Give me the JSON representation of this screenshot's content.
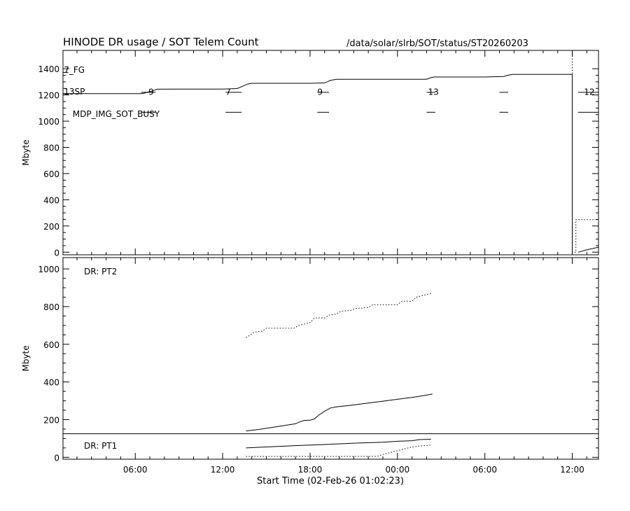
{
  "header": {
    "title": "HINODE DR usage / SOT Telem Count",
    "path": "/data/solar/slrb/SOT/status/ST20260203"
  },
  "x_axis": {
    "label": "Start Time (02-Feb-26 01:02:23)",
    "range_hours": [
      1.04,
      37.8
    ],
    "ticks": [
      {
        "hours": 6,
        "label": "06:00"
      },
      {
        "hours": 12,
        "label": "12:00"
      },
      {
        "hours": 18,
        "label": "18:00"
      },
      {
        "hours": 24,
        "label": "00:00"
      },
      {
        "hours": 30,
        "label": "06:00"
      },
      {
        "hours": 36,
        "label": "12:00"
      }
    ]
  },
  "chart_data": [
    {
      "type": "line",
      "ylabel": "Mbyte",
      "ylim": [
        -20,
        1540
      ],
      "yticks": [
        0,
        200,
        400,
        600,
        800,
        1000,
        1200,
        1400
      ],
      "series": [
        {
          "style": "solid",
          "x": [
            1.04,
            6.4,
            6.6,
            7.2,
            7.5,
            9.0,
            12.0,
            13.0,
            13.4,
            13.7,
            14.0,
            18.0,
            19.0,
            19.4,
            19.8,
            24.0,
            26.0,
            26.3,
            26.5,
            30.0,
            31.3,
            31.6,
            31.9,
            36.0,
            36.0
          ],
          "y": [
            1210,
            1210,
            1213,
            1232,
            1244,
            1245,
            1245,
            1249,
            1268,
            1283,
            1289,
            1289,
            1292,
            1311,
            1320,
            1320,
            1320,
            1332,
            1337,
            1337,
            1341,
            1351,
            1357,
            1357,
            0
          ]
        },
        {
          "style": "solid",
          "x": [
            36.4,
            37.0,
            37.8
          ],
          "y": [
            0,
            18,
            38
          ]
        },
        {
          "style": "dotted",
          "x": [
            36.0,
            36.0,
            36.25,
            36.25,
            37.8
          ],
          "y": [
            1520,
            0,
            0,
            248,
            248
          ]
        }
      ],
      "markers": [
        {
          "type": "text",
          "label": "7_FG",
          "x": 1.1,
          "y": 1395
        },
        {
          "type": "text",
          "label": "13SP",
          "x": 1.1,
          "y": 1230
        },
        {
          "type": "text",
          "label": "MDP_IMG_SOT_BUSY",
          "x": 1.7,
          "y": 1060
        },
        {
          "type": "text",
          "label": "9",
          "x": 6.9,
          "y": 1228
        },
        {
          "type": "text",
          "label": "7",
          "x": 12.2,
          "y": 1228
        },
        {
          "type": "text",
          "label": "9",
          "x": 18.5,
          "y": 1228
        },
        {
          "type": "text",
          "label": "13",
          "x": 26.1,
          "y": 1228
        },
        {
          "type": "text",
          "label": "12",
          "x": 36.8,
          "y": 1228
        },
        {
          "type": "segment",
          "x": [
            1.04,
            1.4
          ],
          "y": 1372
        },
        {
          "type": "segment",
          "x": [
            1.04,
            1.4
          ],
          "y": 1210
        },
        {
          "type": "segment",
          "x": [
            6.4,
            7.4
          ],
          "y": 1220
        },
        {
          "type": "segment",
          "x": [
            6.4,
            7.4
          ],
          "y": 1068
        },
        {
          "type": "segment",
          "x": [
            12.2,
            13.3
          ],
          "y": 1220
        },
        {
          "type": "segment",
          "x": [
            12.2,
            13.3
          ],
          "y": 1068
        },
        {
          "type": "segment",
          "x": [
            18.5,
            19.3
          ],
          "y": 1220
        },
        {
          "type": "segment",
          "x": [
            18.5,
            19.3
          ],
          "y": 1068
        },
        {
          "type": "segment",
          "x": [
            26.0,
            26.6
          ],
          "y": 1220
        },
        {
          "type": "segment",
          "x": [
            26.0,
            26.6
          ],
          "y": 1068
        },
        {
          "type": "segment",
          "x": [
            31.0,
            31.6
          ],
          "y": 1220
        },
        {
          "type": "segment",
          "x": [
            31.0,
            31.6
          ],
          "y": 1068
        },
        {
          "type": "segment",
          "x": [
            36.4,
            37.8
          ],
          "y": 1220
        },
        {
          "type": "segment",
          "x": [
            36.4,
            37.8
          ],
          "y": 1068
        }
      ]
    },
    {
      "type": "line",
      "ylabel": "Mbyte",
      "ylim": [
        -10,
        1060
      ],
      "yticks": [
        0,
        200,
        400,
        600,
        800,
        1000
      ],
      "series": [
        {
          "name": "DR: PT2",
          "style": "solid",
          "x": [
            13.6,
            14.5,
            15.5,
            16.5,
            17.0,
            17.3,
            17.6,
            18.0,
            18.3,
            18.6,
            19.0,
            19.4,
            19.8,
            21.0,
            22.0,
            23.0,
            24.0,
            25.0,
            26.0,
            26.4
          ],
          "y": [
            140,
            148,
            160,
            172,
            178,
            188,
            196,
            197,
            204,
            224,
            245,
            262,
            268,
            278,
            288,
            298,
            308,
            318,
            330,
            336
          ]
        },
        {
          "name": "DR: PT2",
          "style": "dotted",
          "x": [
            13.6,
            13.9,
            14.2,
            14.7,
            15.0,
            16.9,
            17.2,
            18.0,
            18.3,
            19.0,
            19.3,
            19.8,
            20.1,
            20.8,
            21.1,
            22.0,
            22.3,
            24.0,
            24.3,
            25.0,
            25.3,
            26.3
          ],
          "y": [
            635,
            650,
            665,
            670,
            685,
            685,
            700,
            715,
            740,
            740,
            755,
            760,
            775,
            780,
            790,
            795,
            810,
            810,
            828,
            828,
            850,
            870
          ]
        },
        {
          "name": "DR: PT1",
          "style": "solid",
          "x": [
            13.6,
            15.0,
            17.0,
            19.0,
            21.0,
            23.0,
            24.0,
            25.0,
            25.5,
            26.3
          ],
          "y": [
            50,
            55,
            62,
            68,
            75,
            80,
            85,
            88,
            94,
            96
          ]
        },
        {
          "name": "DR: PT1",
          "style": "dotted",
          "x": [
            13.6,
            22.6,
            23.0,
            23.5,
            24.0,
            24.5,
            25.0,
            25.5,
            26.3
          ],
          "y": [
            5,
            5,
            15,
            25,
            35,
            45,
            55,
            60,
            65
          ]
        }
      ],
      "labels": [
        "DR: PT2",
        "DR: PT1"
      ],
      "divider_y": 125
    }
  ]
}
